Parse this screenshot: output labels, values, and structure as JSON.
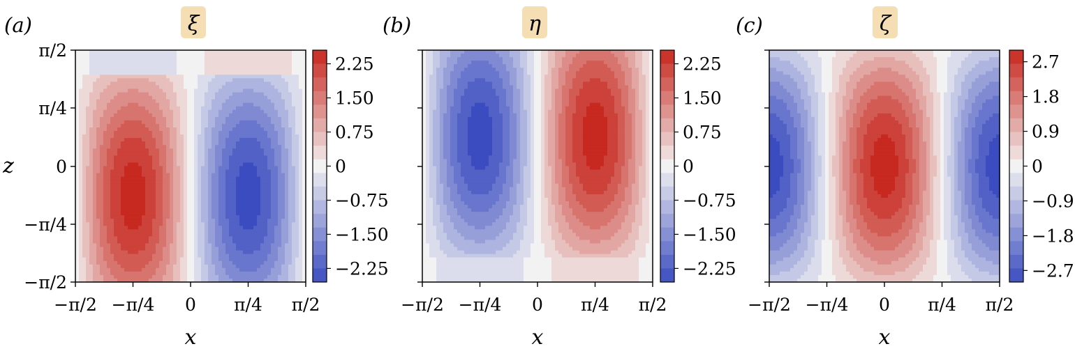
{
  "chart_data": [
    {
      "type": "heatmap",
      "panel_label": "(a)",
      "title": "ξ",
      "xlabel": "x",
      "ylabel": "z",
      "xlim": [
        -1.5708,
        1.5708
      ],
      "ylim": [
        -1.5708,
        1.5708
      ],
      "xticks": [
        "−π/2",
        "−π/4",
        "0",
        "π/4",
        "π/2"
      ],
      "yticks": [
        "π/2",
        "π/4",
        "0",
        "−π/4",
        "−π/2"
      ],
      "colorbar": {
        "min": -2.55,
        "max": 2.55,
        "ticks": [
          "2.25",
          "1.50",
          "0.75",
          "0",
          "−0.75",
          "−1.50",
          "−2.25"
        ]
      },
      "field": "xi",
      "extremes": [
        {
          "x": -0.7854,
          "z": -0.4,
          "value": 2.55
        },
        {
          "x": 0.7854,
          "z": -0.4,
          "value": -2.55
        }
      ]
    },
    {
      "type": "heatmap",
      "panel_label": "(b)",
      "title": "η",
      "xlabel": "x",
      "ylabel": "",
      "xlim": [
        -1.5708,
        1.5708
      ],
      "ylim": [
        -1.5708,
        1.5708
      ],
      "xticks": [
        "−π/2",
        "−π/4",
        "0",
        "π/4",
        "π/2"
      ],
      "yticks": [],
      "colorbar": {
        "min": -2.55,
        "max": 2.55,
        "ticks": [
          "2.25",
          "1.50",
          "0.75",
          "0",
          "−0.75",
          "−1.50",
          "−2.25"
        ]
      },
      "field": "eta",
      "extremes": [
        {
          "x": -0.7854,
          "z": 0.4,
          "value": -2.55
        },
        {
          "x": 0.7854,
          "z": 0.4,
          "value": 2.55
        }
      ]
    },
    {
      "type": "heatmap",
      "panel_label": "(c)",
      "title": "ζ",
      "xlabel": "x",
      "ylabel": "",
      "xlim": [
        -1.5708,
        1.5708
      ],
      "ylim": [
        -1.5708,
        1.5708
      ],
      "xticks": [
        "−π/2",
        "−π/4",
        "0",
        "π/4",
        "π/2"
      ],
      "yticks": [],
      "colorbar": {
        "min": -3.0,
        "max": 3.0,
        "ticks": [
          "2.7",
          "1.8",
          "0.9",
          "0",
          "−0.9",
          "−1.8",
          "−2.7"
        ]
      },
      "field": "zeta",
      "extremes": [
        {
          "x": 0,
          "z": 0,
          "value": 3.0
        },
        {
          "x": -1.5708,
          "z": 0,
          "value": -3.0
        },
        {
          "x": 1.5708,
          "z": 0,
          "value": -3.0
        }
      ]
    }
  ],
  "style": {
    "badge_color": "#f5deb3",
    "colormap": [
      "#3b4cc0",
      "#f2f2f2",
      "#c7281f"
    ]
  }
}
